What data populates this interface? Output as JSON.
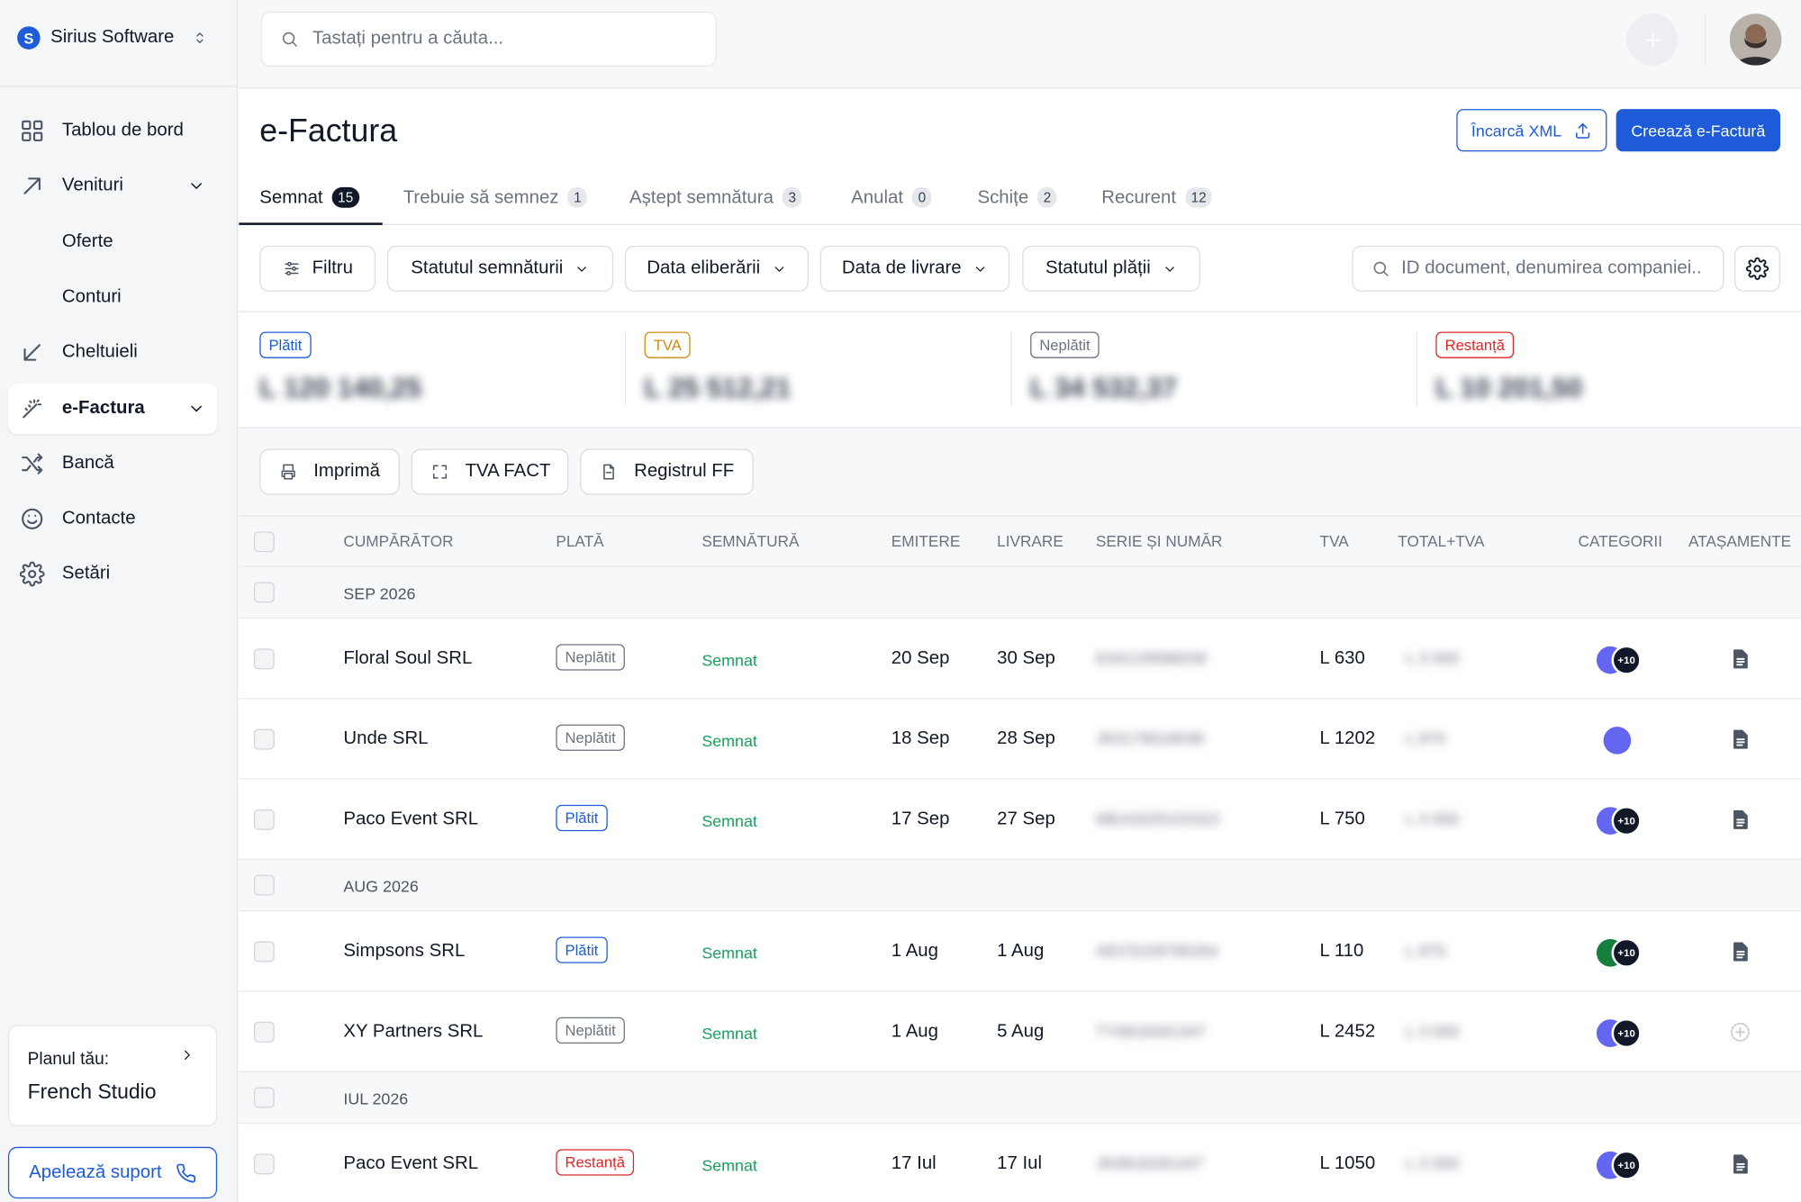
{
  "sidebar": {
    "logo": "S",
    "company": "Sirius Software",
    "nav": [
      {
        "label": "Tablou de bord"
      },
      {
        "label": "Venituri",
        "expand": true
      },
      {
        "label": "Oferte",
        "sub": true
      },
      {
        "label": "Conturi",
        "sub": true
      },
      {
        "label": "Cheltuieli"
      },
      {
        "label": "e-Factura",
        "expand": true,
        "active": true
      },
      {
        "label": "Bancă"
      },
      {
        "label": "Contacte"
      },
      {
        "label": "Setări"
      }
    ],
    "plan": {
      "label": "Planul tău:",
      "name": "French Studio"
    },
    "support": "Apelează suport"
  },
  "topbar": {
    "search": "Tastați pentru a căuta..."
  },
  "header": {
    "title": "e-Factura",
    "upload": "Încarcă XML",
    "create": "Creează e-Factură"
  },
  "tabs": [
    {
      "label": "Semnat",
      "count": 15,
      "active": true
    },
    {
      "label": "Trebuie să semnez",
      "count": 1
    },
    {
      "label": "Aștept semnătura",
      "count": 3
    },
    {
      "label": "Anulat",
      "count": 0
    },
    {
      "label": "Schițe",
      "count": 2
    },
    {
      "label": "Recurent",
      "count": 12
    }
  ],
  "filters": {
    "items": [
      "Filtru",
      "Statutul semnăturii",
      "Data eliberării",
      "Data de livrare",
      "Statutul plății"
    ],
    "search": "ID document, denumirea companiei.."
  },
  "summary": [
    {
      "label": "Plătit",
      "amount": "L 120 140,25",
      "color": "#1d5bd8"
    },
    {
      "label": "TVA",
      "amount": "L 25 512,21",
      "color": "#d08a12"
    },
    {
      "label": "Neplătit",
      "amount": "L 34 532,37",
      "color": "#6b7280"
    },
    {
      "label": "Restanță",
      "amount": "L 10 201,50",
      "color": "#dc2626"
    }
  ],
  "actions": [
    "Imprimă",
    "TVA FACT",
    "Registrul FF"
  ],
  "table": {
    "columns": [
      "CUMPĂRĂTOR",
      "PLATĂ",
      "SEMNĂTURĂ",
      "EMITERE",
      "LIVRARE",
      "SERIE ȘI NUMĂR",
      "TVA",
      "TOTAL+TVA",
      "CATEGORII",
      "ATAȘAMENTE"
    ],
    "groups": [
      {
        "label": "SEP 2026",
        "rows": [
          {
            "buyer": "Floral Soul SRL",
            "payment": "Neplătit",
            "payment_color": "#6b7280",
            "signature": "Semnat",
            "issue": "20 Sep",
            "delivery": "30 Sep",
            "serial": "EA0129588038",
            "vat": "L 630",
            "total": "L 3 000",
            "category": {
              "color": "#6366f1",
              "more": "+10"
            },
            "attachment": true
          },
          {
            "buyer": "Unde SRL",
            "payment": "Neplătit",
            "payment_color": "#6b7280",
            "signature": "Semnat",
            "issue": "18 Sep",
            "delivery": "28 Sep",
            "serial": "JK0178018038",
            "vat": "L 1202",
            "total": "L 870",
            "category": {
              "color": "#6366f1"
            },
            "attachment": true
          },
          {
            "buyer": "Paco Event SRL",
            "payment": "Plătit",
            "payment_color": "#1d5bd8",
            "signature": "Semnat",
            "issue": "17 Sep",
            "delivery": "27 Sep",
            "serial": "MEA2025103322",
            "vat": "L 750",
            "total": "L 3 000",
            "category": {
              "color": "#6366f1",
              "more": "+10"
            },
            "attachment": true
          }
        ]
      },
      {
        "label": "AUG 2026",
        "rows": [
          {
            "buyer": "Simpsons SRL",
            "payment": "Plătit",
            "payment_color": "#1d5bd8",
            "signature": "Semnat",
            "issue": "1 Aug",
            "delivery": "1 Aug",
            "serial": "AEC5228780264",
            "vat": "L 110",
            "total": "L 870",
            "category": {
              "color": "#15803d",
              "more": "+10"
            },
            "attachment": true
          },
          {
            "buyer": "XY Partners SRL",
            "payment": "Neplătit",
            "payment_color": "#6b7280",
            "signature": "Semnat",
            "issue": "1 Aug",
            "delivery": "5 Aug",
            "serial": "TY0818281347",
            "vat": "L 2452",
            "total": "L 3 000",
            "category": {
              "color": "#6366f1",
              "more": "+10"
            },
            "attachment": false
          }
        ]
      },
      {
        "label": "IUL 2026",
        "rows": [
          {
            "buyer": "Paco Event SRL",
            "payment": "Restanță",
            "payment_color": "#dc2626",
            "signature": "Semnat",
            "issue": "17 Iul",
            "delivery": "17 Iul",
            "serial": "JK0818281347",
            "vat": "L 1050",
            "total": "L 3 000",
            "category": {
              "color": "#6366f1",
              "more": "+10"
            },
            "attachment": true
          }
        ]
      }
    ]
  }
}
